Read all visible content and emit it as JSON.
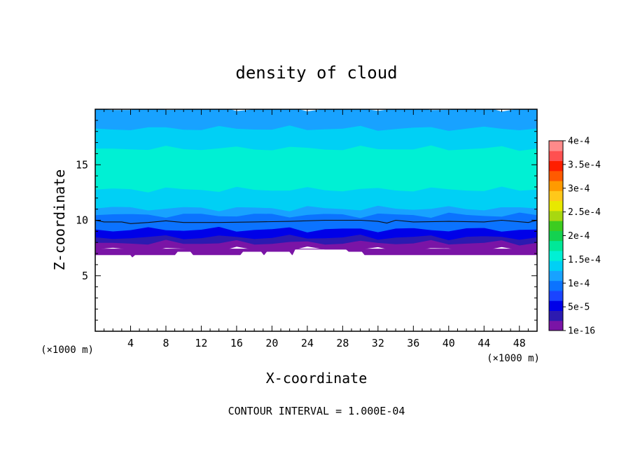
{
  "chart_data": {
    "type": "heatmap",
    "title": "density of cloud",
    "xlabel": "X-coordinate",
    "ylabel": "Z-coordinate",
    "x_unit_label": "(×1000 m)",
    "y_unit_label": "(×1000 m)",
    "xlim": [
      0,
      50
    ],
    "ylim": [
      0,
      20
    ],
    "x_ticks": [
      4,
      8,
      12,
      16,
      20,
      24,
      28,
      32,
      36,
      40,
      44,
      48
    ],
    "y_ticks": [
      5,
      10,
      15
    ],
    "footer": "CONTOUR INTERVAL = 1.000E-04",
    "contour_interval": 0.0001,
    "colorbar": {
      "min": 1e-16,
      "max": 0.0004,
      "tick_values": [
        1e-16,
        5e-05,
        0.0001,
        0.00015,
        0.0002,
        0.00025,
        0.0003,
        0.00035,
        0.0004
      ],
      "tick_labels": [
        "1e-16",
        "5e-5",
        "1e-4",
        "1.5e-4",
        "2e-4",
        "2.5e-4",
        "3e-4",
        "3.5e-4",
        "4e-4"
      ],
      "colors": [
        "#7a14a6",
        "#2c1ab0",
        "#0000e8",
        "#1a44ff",
        "#0b73ff",
        "#18a2ff",
        "#00d0f5",
        "#00f0d4",
        "#00e898",
        "#14d250",
        "#3ccc20",
        "#a8d810",
        "#e8e800",
        "#ffc81a",
        "#ff9a00",
        "#ff5a00",
        "#ff1e00",
        "#ff5050",
        "#ff8a8a"
      ]
    },
    "cloud_base": [
      [
        0,
        6.9
      ],
      [
        4,
        6.9
      ],
      [
        4.2,
        6.7
      ],
      [
        4.5,
        6.9
      ],
      [
        9,
        6.9
      ],
      [
        9.3,
        7.2
      ],
      [
        10.8,
        7.2
      ],
      [
        11.1,
        6.9
      ],
      [
        16.4,
        6.9
      ],
      [
        16.7,
        7.2
      ],
      [
        18.8,
        7.2
      ],
      [
        19.1,
        6.9
      ],
      [
        19.4,
        7.2
      ],
      [
        22,
        7.2
      ],
      [
        22.3,
        6.9
      ],
      [
        22.6,
        7.4
      ],
      [
        28.4,
        7.4
      ],
      [
        28.7,
        7.2
      ],
      [
        30.2,
        7.2
      ],
      [
        30.5,
        6.9
      ],
      [
        50,
        6.9
      ]
    ],
    "contour_line_1e-4": [
      [
        0,
        10.0
      ],
      [
        1,
        9.85
      ],
      [
        3,
        9.85
      ],
      [
        4,
        9.7
      ],
      [
        6,
        9.8
      ],
      [
        8,
        9.95
      ],
      [
        10,
        9.8
      ],
      [
        14,
        9.8
      ],
      [
        18,
        9.85
      ],
      [
        22,
        9.9
      ],
      [
        26,
        10.0
      ],
      [
        30,
        10.0
      ],
      [
        32,
        9.9
      ],
      [
        33,
        9.75
      ],
      [
        34,
        10.0
      ],
      [
        36,
        9.85
      ],
      [
        40,
        9.9
      ],
      [
        44,
        9.85
      ],
      [
        46,
        10.0
      ],
      [
        49,
        9.8
      ],
      [
        50,
        10.0
      ]
    ],
    "bands": [
      {
        "z_bottom": 6.9,
        "z_top": 7.4,
        "value": 3e-06
      },
      {
        "z_bottom": 7.4,
        "z_top": 8.0,
        "value": 1.5e-05
      },
      {
        "z_bottom": 8.0,
        "z_top": 8.5,
        "value": 3.5e-05
      },
      {
        "z_bottom": 8.5,
        "z_top": 9.2,
        "value": 6e-05
      },
      {
        "z_bottom": 9.2,
        "z_top": 9.9,
        "value": 9e-05
      },
      {
        "z_bottom": 9.9,
        "z_top": 10.5,
        "value": 0.000105
      },
      {
        "z_bottom": 10.5,
        "z_top": 11.1,
        "value": 0.00012
      },
      {
        "z_bottom": 11.1,
        "z_top": 12.8,
        "value": 0.00014
      },
      {
        "z_bottom": 12.8,
        "z_top": 16.5,
        "value": 0.00016
      },
      {
        "z_bottom": 16.5,
        "z_top": 18.3,
        "value": 0.00014
      },
      {
        "z_bottom": 18.3,
        "z_top": 20.0,
        "value": 0.00012
      }
    ]
  }
}
